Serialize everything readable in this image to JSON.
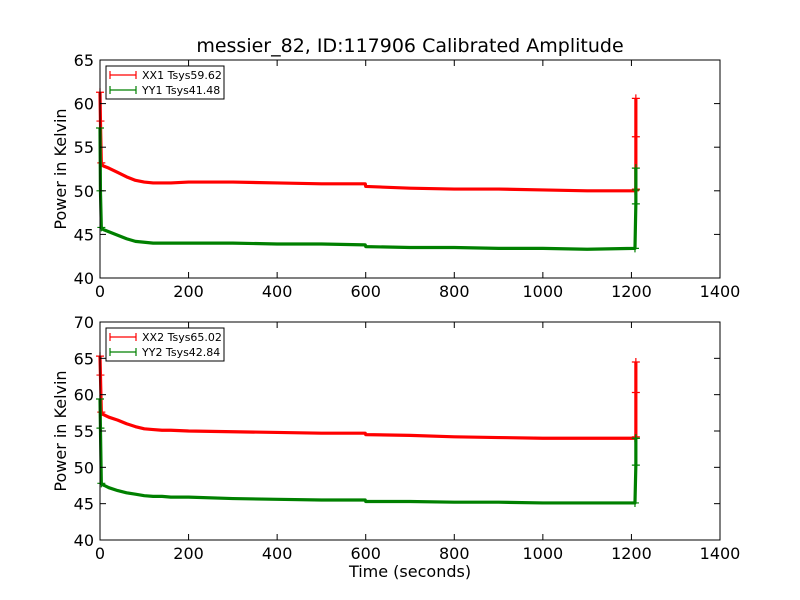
{
  "chart_data": [
    {
      "type": "line",
      "title": "messier_82, ID:117906 Calibrated Amplitude",
      "xlabel": "",
      "ylabel": "Power in Kelvin",
      "xlim": [
        0,
        1400
      ],
      "ylim": [
        40,
        65
      ],
      "xticks": [
        0,
        200,
        400,
        600,
        800,
        1000,
        1200,
        1400
      ],
      "yticks": [
        40,
        45,
        50,
        55,
        60,
        65
      ],
      "legend_position": "top-left",
      "grid": false,
      "series": [
        {
          "name": "XX1 Tsys59.62",
          "color": "#ff0000",
          "marker": "+",
          "x": [
            0,
            1,
            3,
            6,
            10,
            20,
            40,
            60,
            80,
            100,
            120,
            140,
            160,
            200,
            300,
            400,
            500,
            599,
            600,
            700,
            800,
            900,
            1000,
            1100,
            1205,
            1208,
            1210,
            1210,
            1210
          ],
          "y": [
            61.3,
            58.0,
            53.2,
            52.9,
            52.8,
            52.6,
            52.1,
            51.6,
            51.2,
            51.0,
            50.9,
            50.9,
            50.9,
            51.0,
            51.0,
            50.9,
            50.8,
            50.8,
            50.5,
            50.3,
            50.2,
            50.2,
            50.1,
            50.0,
            50.0,
            50.0,
            50.2,
            56.2,
            60.6
          ]
        },
        {
          "name": "YY1 Tsys41.48",
          "color": "#008000",
          "marker": "+",
          "x": [
            0,
            1,
            3,
            6,
            10,
            20,
            40,
            60,
            80,
            100,
            120,
            140,
            160,
            200,
            300,
            400,
            500,
            599,
            600,
            700,
            800,
            900,
            1000,
            1100,
            1205,
            1208,
            1210,
            1210,
            1210
          ],
          "y": [
            57.2,
            50.0,
            45.8,
            45.6,
            45.5,
            45.3,
            44.9,
            44.5,
            44.2,
            44.1,
            44.0,
            44.0,
            44.0,
            44.0,
            44.0,
            43.9,
            43.9,
            43.8,
            43.6,
            43.5,
            43.5,
            43.4,
            43.4,
            43.3,
            43.4,
            43.4,
            48.5,
            50.1,
            52.6
          ]
        }
      ]
    },
    {
      "type": "line",
      "title": "",
      "xlabel": "Time (seconds)",
      "ylabel": "Power in Kelvin",
      "xlim": [
        0,
        1400
      ],
      "ylim": [
        40,
        70
      ],
      "xticks": [
        0,
        200,
        400,
        600,
        800,
        1000,
        1200,
        1400
      ],
      "yticks": [
        40,
        45,
        50,
        55,
        60,
        65,
        70
      ],
      "legend_position": "top-left",
      "grid": false,
      "series": [
        {
          "name": "XX2 Tsys65.02",
          "color": "#ff0000",
          "marker": "+",
          "x": [
            0,
            1,
            3,
            6,
            10,
            20,
            40,
            60,
            80,
            100,
            120,
            140,
            160,
            200,
            300,
            400,
            500,
            599,
            600,
            700,
            800,
            900,
            1000,
            1100,
            1205,
            1208,
            1210,
            1210,
            1210
          ],
          "y": [
            65.3,
            62.7,
            57.6,
            57.3,
            57.2,
            56.9,
            56.5,
            56.0,
            55.6,
            55.3,
            55.2,
            55.1,
            55.1,
            55.0,
            54.9,
            54.8,
            54.7,
            54.7,
            54.5,
            54.4,
            54.2,
            54.1,
            54.0,
            54.0,
            54.0,
            54.0,
            54.2,
            60.3,
            64.5
          ]
        },
        {
          "name": "YY2 Tsys42.84",
          "color": "#008000",
          "marker": "+",
          "x": [
            0,
            1,
            3,
            6,
            10,
            20,
            40,
            60,
            80,
            100,
            120,
            140,
            160,
            200,
            300,
            400,
            500,
            599,
            600,
            700,
            800,
            900,
            1000,
            1100,
            1205,
            1208,
            1210,
            1210,
            1210
          ],
          "y": [
            59.4,
            55.4,
            47.8,
            47.6,
            47.5,
            47.2,
            46.8,
            46.5,
            46.3,
            46.1,
            46.0,
            46.0,
            45.9,
            45.9,
            45.7,
            45.6,
            45.5,
            45.5,
            45.3,
            45.3,
            45.2,
            45.2,
            45.1,
            45.1,
            45.1,
            45.1,
            50.3,
            54.0,
            54.0
          ]
        }
      ]
    }
  ]
}
